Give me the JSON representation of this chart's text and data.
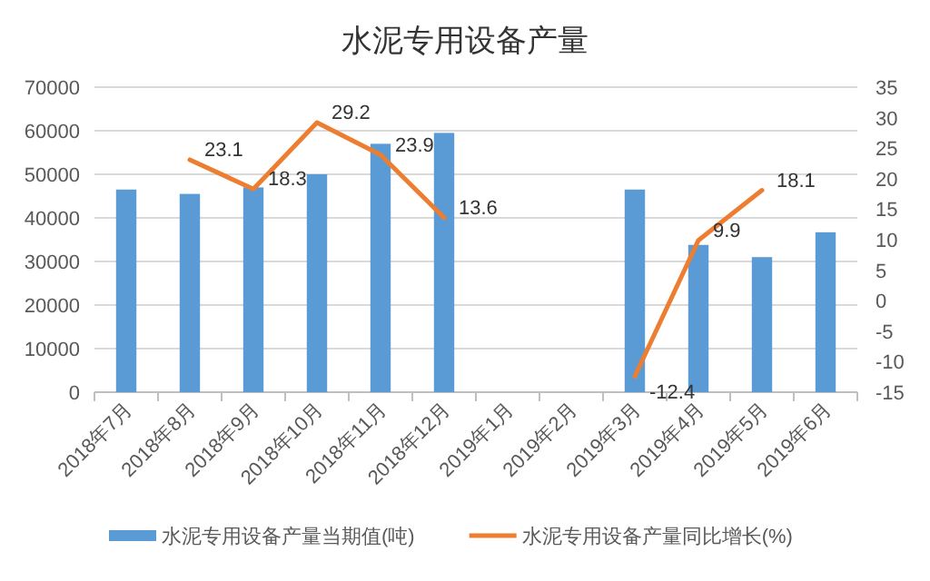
{
  "chart_data": {
    "type": "bar",
    "title": "水泥专用设备产量",
    "categories": [
      "2018年7月",
      "2018年8月",
      "2018年9月",
      "2018年10月",
      "2018年11月",
      "2018年12月",
      "2019年1月",
      "2019年2月",
      "2019年3月",
      "2019年4月",
      "2019年5月",
      "2019年6月"
    ],
    "series": [
      {
        "name": "水泥专用设备产量当期值(吨)",
        "color": "#5b9bd5",
        "values": [
          46500,
          45500,
          47000,
          50000,
          57000,
          59500,
          null,
          null,
          46500,
          33800,
          31000,
          36700
        ]
      },
      {
        "name": "水泥专用设备产量同比增长(%)",
        "type": "line",
        "axis": "y2",
        "color": "#ed7d31",
        "values": [
          null,
          23.1,
          18.3,
          29.2,
          23.9,
          13.6,
          null,
          null,
          -12.4,
          9.9,
          18.1,
          null
        ],
        "value_labels": [
          null,
          "23.1",
          "18.3",
          "29.2",
          "23.9",
          "13.6",
          null,
          null,
          "-12.4",
          "9.9",
          "18.1",
          null
        ]
      }
    ],
    "ylim": [
      0,
      70000
    ],
    "yticks": [
      0,
      10000,
      20000,
      30000,
      40000,
      50000,
      60000,
      70000
    ],
    "y2lim": [
      -15,
      35
    ],
    "y2ticks": [
      -15,
      -10,
      -5,
      0,
      5,
      10,
      15,
      20,
      25,
      30,
      35
    ],
    "grid": "y",
    "legend": "bottom",
    "marker": "none",
    "line_style": "solid"
  }
}
